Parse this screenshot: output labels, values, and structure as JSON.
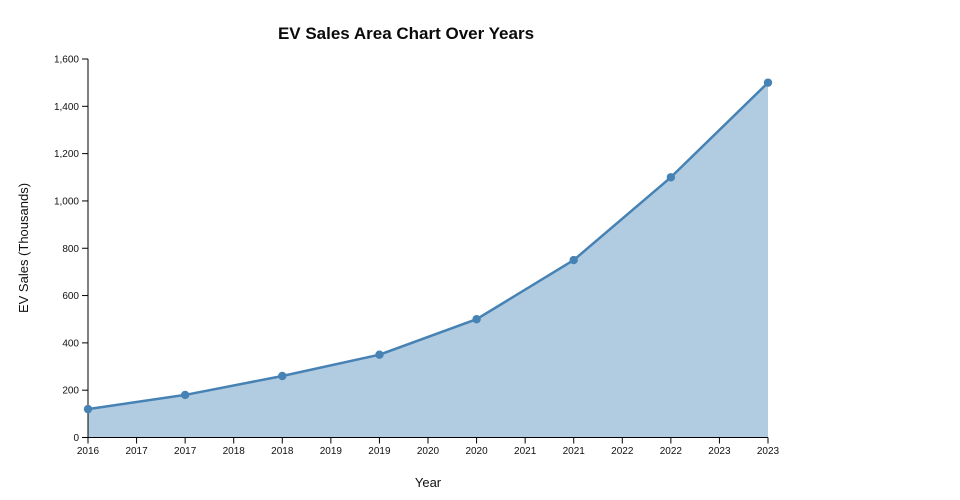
{
  "chart_data": {
    "type": "area",
    "title": "EV Sales Area Chart Over Years",
    "xlabel": "Year",
    "ylabel": "EV Sales (Thousands)",
    "x": [
      2016,
      2017,
      2018,
      2019,
      2020,
      2021,
      2022,
      2023
    ],
    "values": [
      120,
      180,
      260,
      350,
      500,
      750,
      1100,
      1500
    ],
    "series_name": "EV Sales",
    "xlim": [
      2016,
      2023
    ],
    "ylim": [
      0,
      1600
    ],
    "x_ticks": [
      2016,
      2016.5,
      2017,
      2017.5,
      2018,
      2018.5,
      2019,
      2019.5,
      2020,
      2020.5,
      2021,
      2021.5,
      2022,
      2022.5,
      2023
    ],
    "x_tick_labels": [
      "2016",
      "2017",
      "2017",
      "2018",
      "2018",
      "2019",
      "2019",
      "2020",
      "2020",
      "2021",
      "2021",
      "2022",
      "2022",
      "2023",
      "2023"
    ],
    "y_ticks": [
      0,
      200,
      400,
      600,
      800,
      1000,
      1200,
      1400,
      1600
    ],
    "y_tick_labels": [
      "0",
      "200",
      "400",
      "600",
      "800",
      "1,000",
      "1,200",
      "1,400",
      "1,600"
    ],
    "grid": false,
    "legend": false,
    "colors": {
      "line": "#4682b4",
      "point": "#4682b4",
      "area": "#4682b4",
      "area_opacity": "0.42",
      "axis": "#000000",
      "text": "#111111"
    }
  }
}
